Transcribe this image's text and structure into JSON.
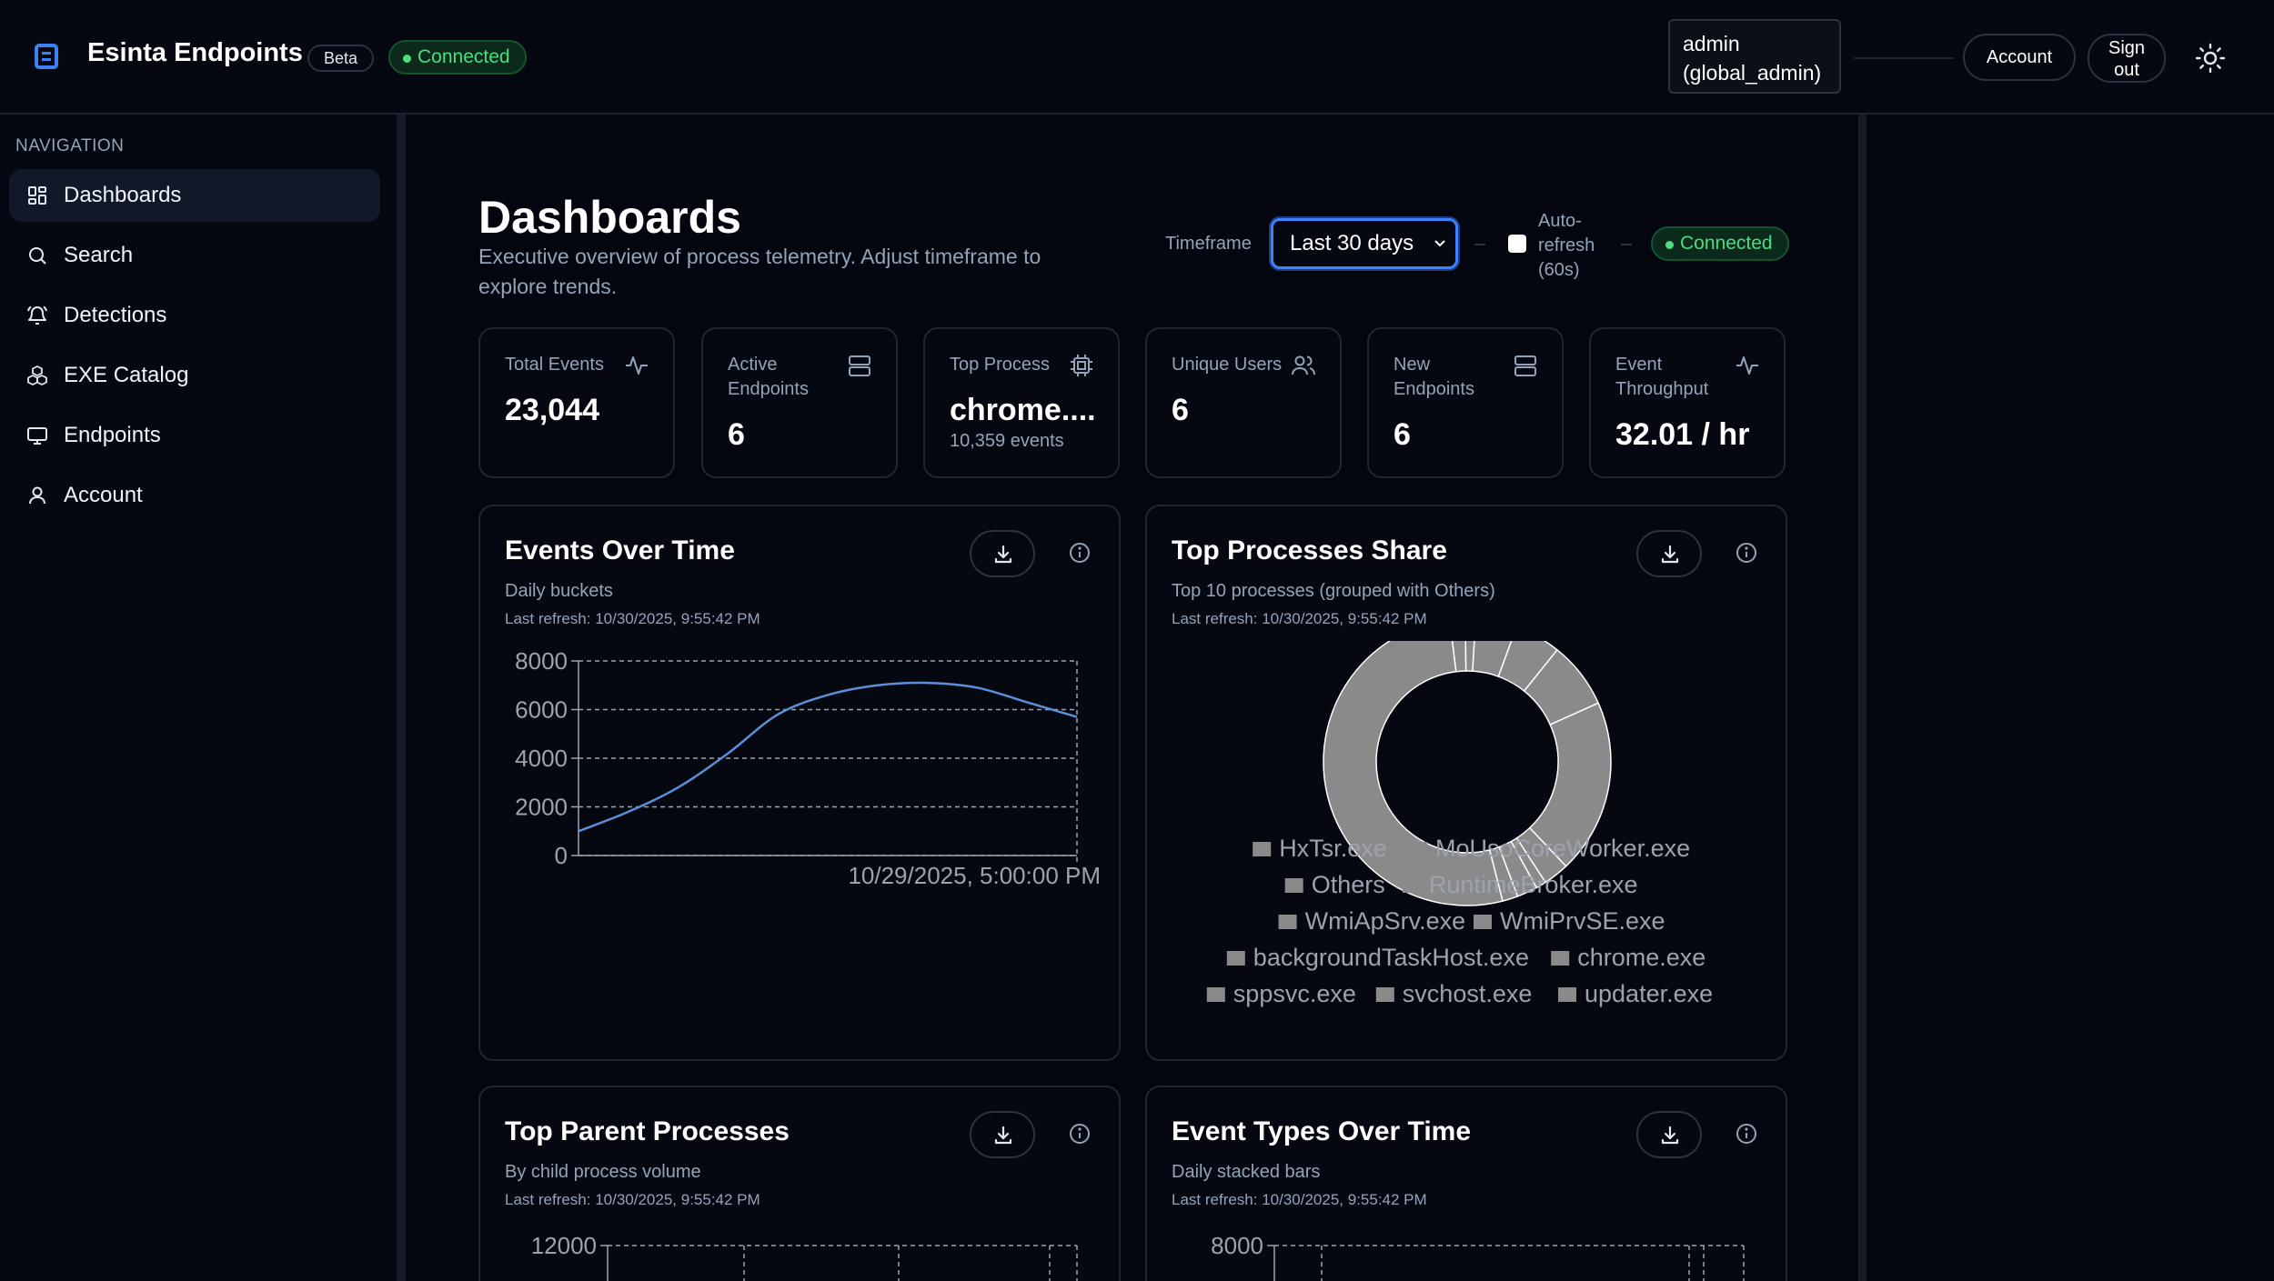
{
  "header": {
    "brand": "Esinta Endpoints",
    "beta": "Beta",
    "status": "Connected",
    "user_line1": "admin",
    "user_line2": "(global_admin)",
    "account_label": "Account",
    "signout_line1": "Sign",
    "signout_line2": "out",
    "theme_icon": "sun-icon"
  },
  "sidebar": {
    "heading": "NAVIGATION",
    "items": [
      {
        "label": "Dashboards",
        "icon": "dashboard-icon",
        "active": true
      },
      {
        "label": "Search",
        "icon": "search-icon"
      },
      {
        "label": "Detections",
        "icon": "bell-icon"
      },
      {
        "label": "EXE Catalog",
        "icon": "cubes-icon"
      },
      {
        "label": "Endpoints",
        "icon": "monitor-icon"
      },
      {
        "label": "Account",
        "icon": "user-icon"
      }
    ]
  },
  "main": {
    "title": "Dashboards",
    "subtitle": "Executive overview of process telemetry. Adjust timeframe to explore trends.",
    "timeframe_label": "Timeframe",
    "timeframe_value": "Last 30 days",
    "auto_refresh_line1": "Auto-",
    "auto_refresh_line2": "refresh",
    "auto_refresh_line3": "(60s)",
    "auto_refresh_checked": false,
    "status": "Connected"
  },
  "kpis": [
    {
      "title_line1": "Total Events",
      "title_line2": "",
      "value": "23,044",
      "sub": "",
      "icon": "activity-icon"
    },
    {
      "title_line1": "Active",
      "title_line2": "Endpoints",
      "value": "6",
      "sub": "",
      "icon": "server-icon"
    },
    {
      "title_line1": "Top Process",
      "title_line2": "",
      "value": "chrome....",
      "sub": "10,359 events",
      "icon": "cpu-icon"
    },
    {
      "title_line1": "Unique Users",
      "title_line2": "",
      "value": "6",
      "sub": "",
      "icon": "users-icon"
    },
    {
      "title_line1": "New",
      "title_line2": "Endpoints",
      "value": "6",
      "sub": "",
      "icon": "server-icon"
    },
    {
      "title_line1": "Event",
      "title_line2": "Throughput",
      "value": "32.01 / hr",
      "sub": "",
      "icon": "activity-icon"
    }
  ],
  "charts": {
    "events_over_time": {
      "title": "Events Over Time",
      "subtitle": "Daily buckets",
      "refresh": "Last refresh: 10/30/2025, 9:55:42 PM"
    },
    "top_processes_share": {
      "title": "Top Processes Share",
      "subtitle": "Top 10 processes (grouped with Others)",
      "refresh": "Last refresh: 10/30/2025, 9:55:42 PM"
    },
    "top_parent_processes": {
      "title": "Top Parent Processes",
      "subtitle": "By child process volume",
      "refresh": "Last refresh: 10/30/2025, 9:55:42 PM"
    },
    "event_types_over_time": {
      "title": "Event Types Over Time",
      "subtitle": "Daily stacked bars",
      "refresh": "Last refresh: 10/30/2025, 9:55:42 PM"
    }
  },
  "chart_data": [
    {
      "type": "line",
      "title": "Events Over Time",
      "x": [
        "",
        "",
        "",
        "",
        "",
        "",
        "",
        "",
        "",
        "",
        "10/29/2025, 5:00:00 PM"
      ],
      "x_tick_label": "10/29/2025, 5:00:00 PM",
      "values": [
        1000,
        1800,
        2800,
        4200,
        5800,
        6600,
        7000,
        7100,
        6900,
        6300,
        5700
      ],
      "ylim": [
        0,
        8000
      ],
      "yticks": [
        0,
        2000,
        4000,
        6000,
        8000
      ],
      "grid": true,
      "color": "#5b8fd6"
    },
    {
      "type": "pie",
      "title": "Top Processes Share",
      "donut": true,
      "labels": [
        "HxTsr.exe",
        "MoUsoCoreWorker.exe",
        "Others",
        "RuntimeBroker.exe",
        "WmiApSrv.exe",
        "WmiPrvSE.exe",
        "backgroundTaskHost.exe",
        "chrome.exe",
        "sppsvc.exe",
        "svchost.exe",
        "updater.exe"
      ],
      "values": [
        4.5,
        6.5,
        17,
        2.5,
        1,
        2,
        1.5,
        45,
        1.5,
        1,
        4
      ],
      "color": "#8a8a8a",
      "legend_placement": "bottom",
      "legend_rows": [
        [
          "HxTsr.exe",
          "MoUsoCoreWorker.exe"
        ],
        [
          "Others",
          "RuntimeBroker.exe"
        ],
        [
          "WmiApSrv.exe",
          "WmiPrvSE.exe"
        ],
        [
          "backgroundTaskHost.exe",
          "chrome.exe"
        ],
        [
          "sppsvc.exe",
          "svchost.exe",
          "updater.exe"
        ]
      ]
    },
    {
      "type": "bar",
      "title": "Top Parent Processes",
      "ylim": [
        0,
        12000
      ],
      "yticks": [
        12000
      ],
      "grid": true
    },
    {
      "type": "bar",
      "title": "Event Types Over Time",
      "stacked": true,
      "ylim": [
        0,
        8000
      ],
      "yticks": [
        8000
      ],
      "grid": true
    }
  ]
}
